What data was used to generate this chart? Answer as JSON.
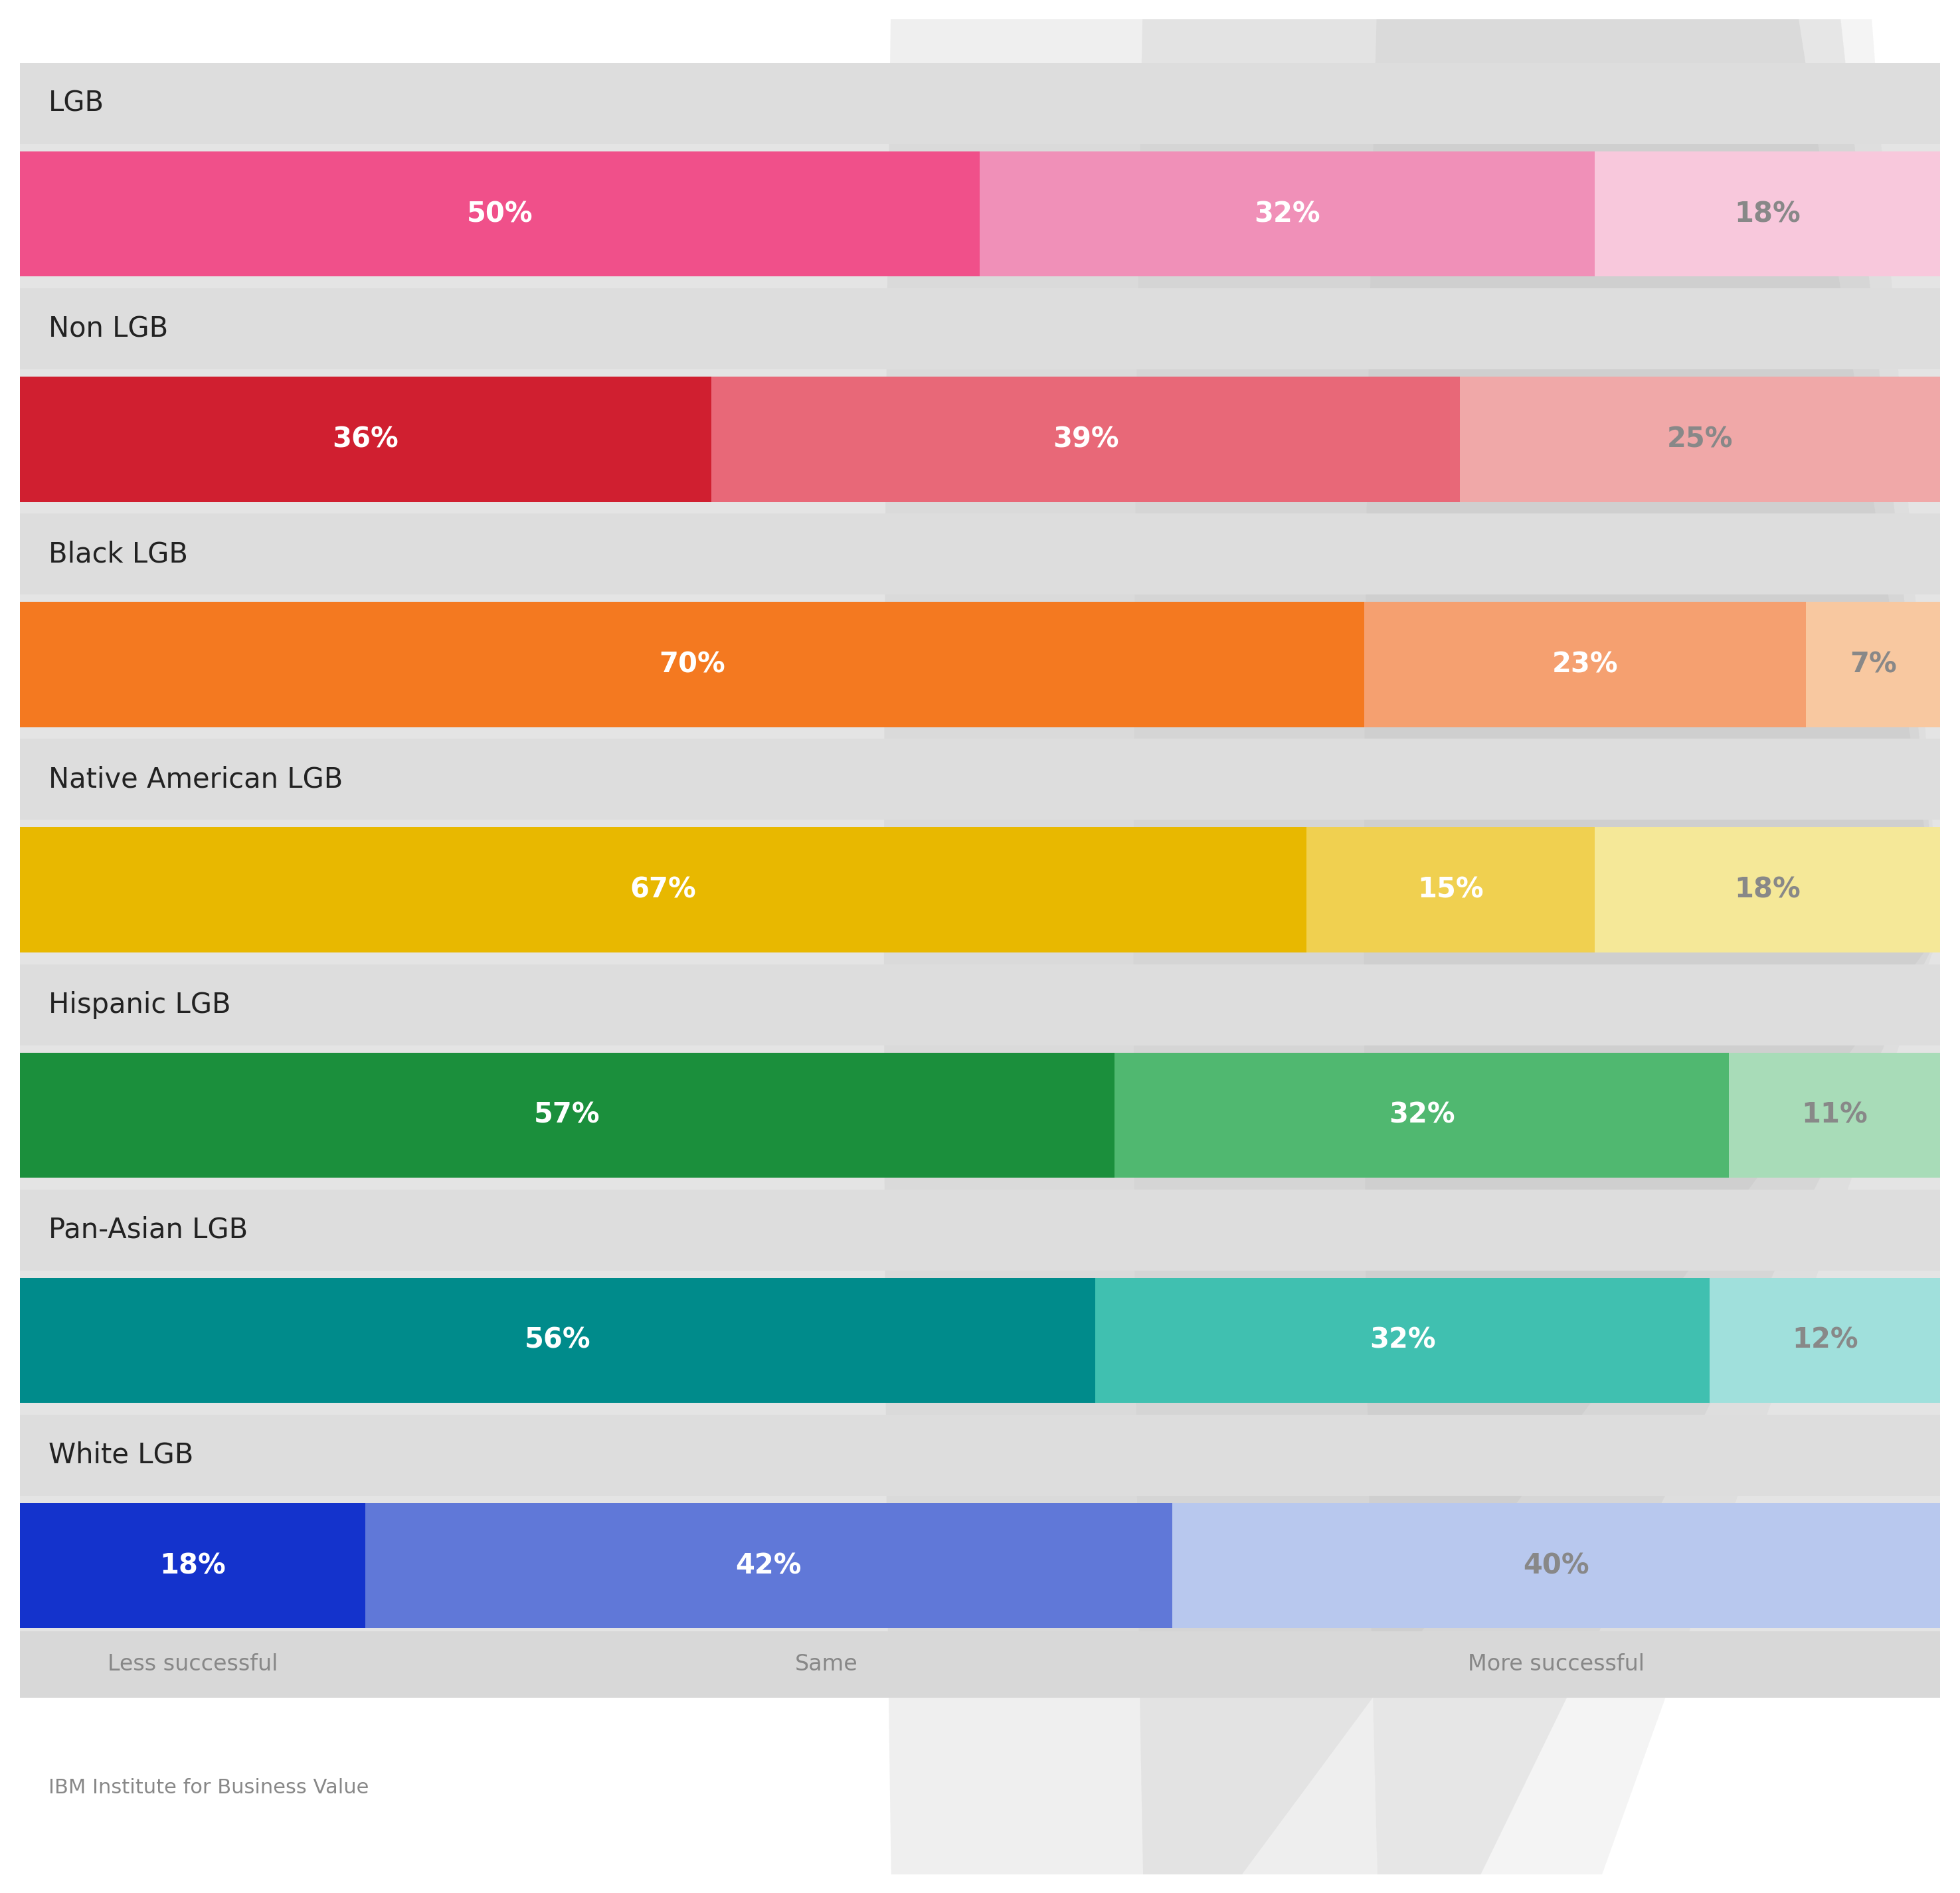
{
  "categories": [
    "LGB",
    "Non LGB",
    "Black LGB",
    "Native American LGB",
    "Hispanic LGB",
    "Pan-Asian LGB",
    "White LGB"
  ],
  "segments": [
    {
      "label": "Less successful",
      "values": [
        50,
        36,
        70,
        67,
        57,
        56,
        18
      ]
    },
    {
      "label": "Same",
      "values": [
        32,
        39,
        23,
        15,
        32,
        32,
        42
      ]
    },
    {
      "label": "More successful",
      "values": [
        18,
        25,
        7,
        18,
        11,
        12,
        40
      ]
    }
  ],
  "bar_colors_dark": [
    "#F0508A",
    "#D01F30",
    "#F47920",
    "#E8B800",
    "#1B8F3C",
    "#008B8B",
    "#1433CC"
  ],
  "bar_colors_mid": [
    "#F090B8",
    "#E86878",
    "#F5A070",
    "#F0D050",
    "#50B870",
    "#40C0B0",
    "#6078D8"
  ],
  "bar_colors_light": [
    "#F8C8DC",
    "#F0A8A8",
    "#F8C8A0",
    "#F5E898",
    "#A8DCB8",
    "#A0E0DC",
    "#B8C8EE"
  ],
  "bg_color": "#FFFFFF",
  "panel_color": "#E4E4E4",
  "label_row_color": "#DDDDDD",
  "xlabel_row_color": "#D8D8D8",
  "font_color_dark": "#222222",
  "font_color_white": "#FFFFFF",
  "font_color_gray": "#888888",
  "font_color_xlabels": "#888888",
  "font_color_footer": "#888888",
  "x_labels": [
    "Less successful",
    "Same",
    "More successful"
  ],
  "footer": "IBM Institute for Business Value",
  "watermark_color": "#C8C8C8"
}
